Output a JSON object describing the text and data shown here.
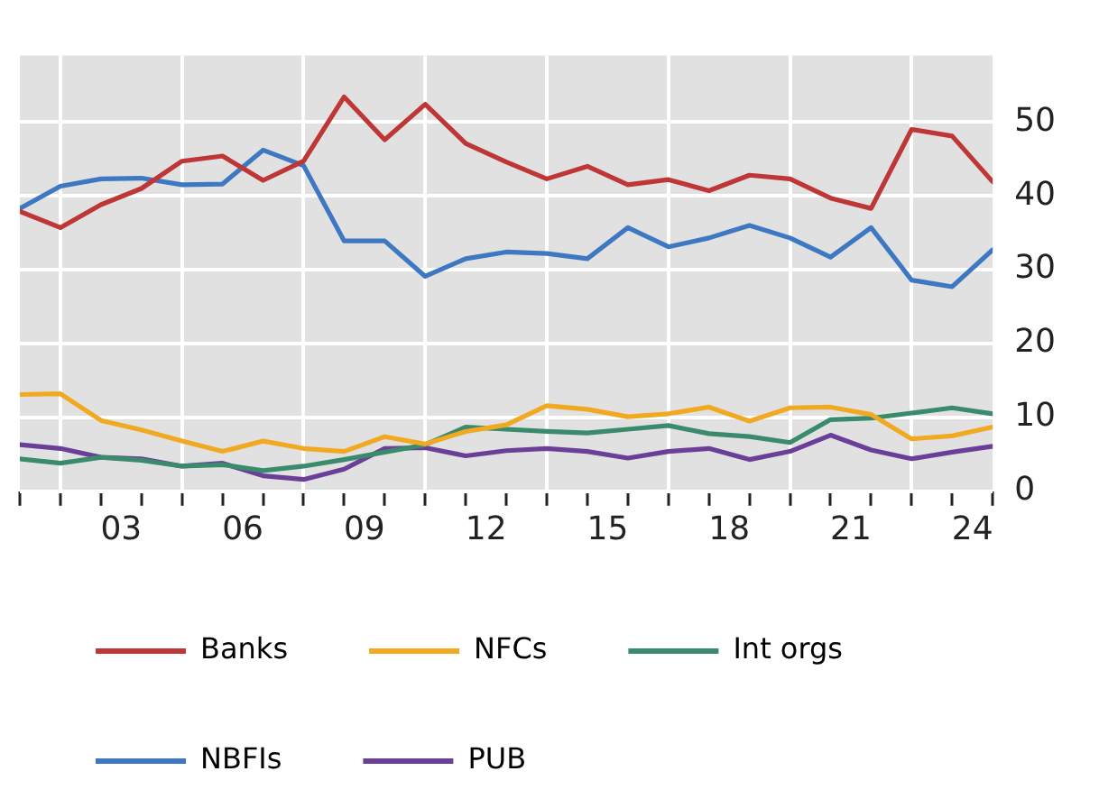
{
  "chart_data": {
    "type": "line",
    "x": [
      2000.5,
      2001.5,
      2002.5,
      2003.5,
      2004.5,
      2005.5,
      2006.5,
      2007.5,
      2008.5,
      2009.5,
      2010.5,
      2011.5,
      2012.5,
      2013.5,
      2014.5,
      2015.5,
      2016.5,
      2017.5,
      2018.5,
      2019.5,
      2020.5,
      2021.5,
      2022.5,
      2023.5,
      2024.5
    ],
    "series": [
      {
        "name": "Banks",
        "color": "#bf3636",
        "values": [
          37.9,
          35.7,
          38.8,
          41,
          44.7,
          45.4,
          42.1,
          44.7,
          53.4,
          47.6,
          52.4,
          47.1,
          44.6,
          42.3,
          44,
          41.5,
          42.2,
          40.7,
          42.8,
          42.3,
          39.7,
          38.3,
          49,
          48.1,
          41.9
        ]
      },
      {
        "name": "NFCs",
        "color": "#f2a922",
        "values": [
          13.1,
          13.2,
          9.6,
          8.3,
          6.8,
          5.4,
          6.8,
          5.8,
          5.4,
          7.4,
          6.4,
          8.1,
          9,
          11.6,
          11.1,
          10.1,
          10.5,
          11.4,
          9.5,
          11.3,
          11.4,
          10.4,
          7.1,
          7.5,
          8.7
        ]
      },
      {
        "name": "Int orgs",
        "color": "#3a8a6c",
        "values": [
          4.4,
          3.8,
          4.6,
          4.2,
          3.4,
          3.6,
          2.8,
          3.4,
          4.3,
          5.3,
          6.3,
          8.7,
          8.4,
          8.1,
          7.9,
          8.4,
          8.9,
          7.8,
          7.4,
          6.6,
          9.7,
          9.9,
          10.6,
          11.3,
          10.5
        ]
      },
      {
        "name": "NBFIs",
        "color": "#3f78c2",
        "values": [
          38.3,
          41.3,
          42.3,
          42.4,
          41.5,
          41.6,
          46.2,
          44.1,
          33.9,
          33.9,
          29.1,
          31.5,
          32.4,
          32.2,
          31.5,
          35.7,
          33.1,
          34.3,
          36,
          34.3,
          31.7,
          35.7,
          28.6,
          27.7,
          32.7
        ]
      },
      {
        "name": "PUB",
        "color": "#6b3f98",
        "values": [
          6.3,
          5.8,
          4.6,
          4.4,
          3.4,
          3.8,
          2.1,
          1.6,
          3,
          5.8,
          5.9,
          4.8,
          5.5,
          5.8,
          5.4,
          4.5,
          5.4,
          5.8,
          4.3,
          5.4,
          7.6,
          5.6,
          4.4,
          5.3,
          6.1
        ]
      }
    ],
    "xlim": [
      2000.5,
      2024.5
    ],
    "xticks": [
      {
        "value": 2000.5,
        "label": null
      },
      {
        "value": 2001.5,
        "label": null
      },
      {
        "value": 2002.5,
        "label": null
      },
      {
        "value": 2003,
        "label": "03"
      },
      {
        "value": 2003.5,
        "label": null
      },
      {
        "value": 2004.5,
        "label": null
      },
      {
        "value": 2005.5,
        "label": null
      },
      {
        "value": 2006,
        "label": "06"
      },
      {
        "value": 2006.5,
        "label": null
      },
      {
        "value": 2007.5,
        "label": null
      },
      {
        "value": 2008.5,
        "label": null
      },
      {
        "value": 2009,
        "label": "09"
      },
      {
        "value": 2009.5,
        "label": null
      },
      {
        "value": 2010.5,
        "label": null
      },
      {
        "value": 2011.5,
        "label": null
      },
      {
        "value": 2012,
        "label": "12"
      },
      {
        "value": 2012.5,
        "label": null
      },
      {
        "value": 2013.5,
        "label": null
      },
      {
        "value": 2014.5,
        "label": null
      },
      {
        "value": 2015,
        "label": "15"
      },
      {
        "value": 2015.5,
        "label": null
      },
      {
        "value": 2016.5,
        "label": null
      },
      {
        "value": 2017.5,
        "label": null
      },
      {
        "value": 2018,
        "label": "18"
      },
      {
        "value": 2018.5,
        "label": null
      },
      {
        "value": 2019.5,
        "label": null
      },
      {
        "value": 2020.5,
        "label": null
      },
      {
        "value": 2021,
        "label": "21"
      },
      {
        "value": 2021.5,
        "label": null
      },
      {
        "value": 2022.5,
        "label": null
      },
      {
        "value": 2023.5,
        "label": null
      },
      {
        "value": 2024,
        "label": "24"
      },
      {
        "value": 2024.5,
        "label": null
      }
    ],
    "ylim": [
      0,
      59
    ],
    "yticks": [
      0,
      10,
      20,
      30,
      40,
      50
    ],
    "grid": true,
    "legend": "bottom left",
    "marker": "none",
    "line_style": "solid"
  }
}
